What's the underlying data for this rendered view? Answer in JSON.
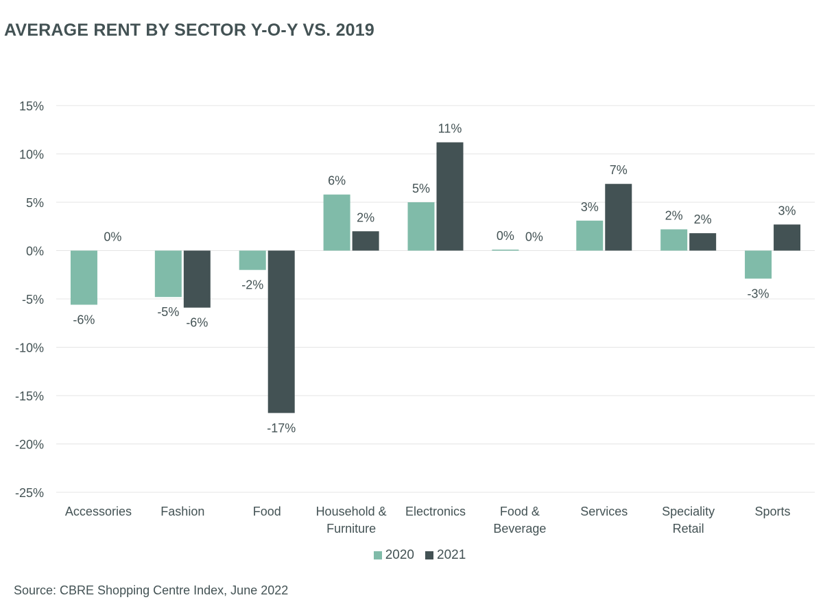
{
  "title": "AVERAGE RENT BY SECTOR Y-O-Y VS. 2019",
  "source": "Source: CBRE Shopping Centre Index, June 2022",
  "colors": {
    "series_2020": "#80bba9",
    "series_2021": "#435254",
    "grid": "#e4e4e4",
    "text": "#435254"
  },
  "chart_data": {
    "type": "bar",
    "categories": [
      [
        "Accessories"
      ],
      [
        "Fashion"
      ],
      [
        "Food"
      ],
      [
        "Household &",
        "Furniture"
      ],
      [
        "Electronics"
      ],
      [
        "Food &",
        "Beverage"
      ],
      [
        "Services"
      ],
      [
        "Speciality",
        "Retail"
      ],
      [
        "Sports"
      ]
    ],
    "series": [
      {
        "name": "2020",
        "color": "#80bba9",
        "values": [
          -5.6,
          -4.8,
          -2.0,
          5.8,
          5.0,
          0.1,
          3.1,
          2.2,
          -2.9
        ],
        "labels": [
          "-6%",
          "-5%",
          "-2%",
          "6%",
          "5%",
          "0%",
          "3%",
          "2%",
          "-3%"
        ]
      },
      {
        "name": "2021",
        "color": "#435254",
        "values": [
          0.0,
          -5.9,
          -16.8,
          2.0,
          11.2,
          0.0,
          6.9,
          1.8,
          2.7
        ],
        "labels": [
          "0%",
          "-6%",
          "-17%",
          "2%",
          "11%",
          "0%",
          "7%",
          "2%",
          "3%"
        ]
      }
    ],
    "yticks": [
      "15%",
      "10%",
      "5%",
      "0%",
      "-5%",
      "-10%",
      "-15%",
      "-20%",
      "-25%"
    ],
    "ytick_values": [
      15,
      10,
      5,
      0,
      -5,
      -10,
      -15,
      -20,
      -25
    ],
    "ylim": [
      -25,
      15
    ],
    "grid": true,
    "legend_position": "bottom"
  }
}
